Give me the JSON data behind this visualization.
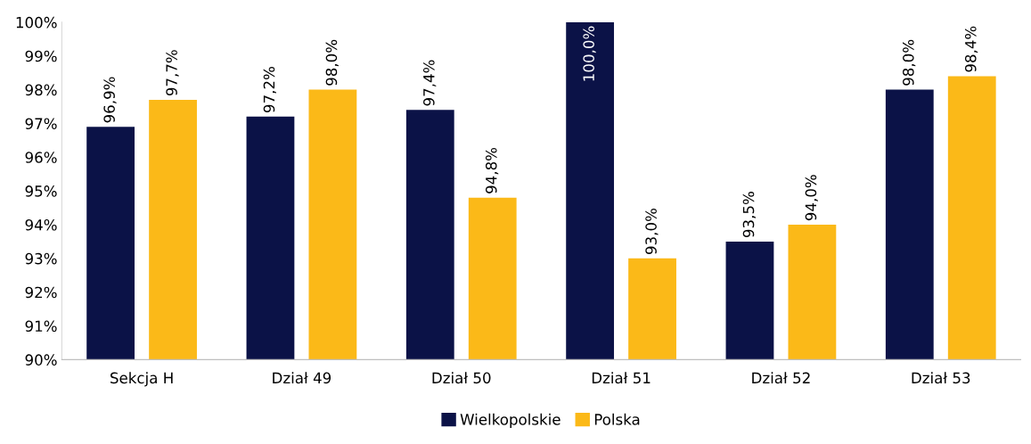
{
  "chart_data": {
    "type": "bar",
    "categories": [
      "Sekcja H",
      "Dział 49",
      "Dział 50",
      "Dział 51",
      "Dział 52",
      "Dział 53"
    ],
    "series": [
      {
        "name": "Wielkopolskie",
        "color": "#0b1247",
        "values": [
          96.9,
          97.2,
          97.4,
          100.0,
          93.5,
          98.0
        ],
        "value_labels": [
          "96,9%",
          "97,2%",
          "97,4%",
          "100,0%",
          "93,5%",
          "98,0%"
        ]
      },
      {
        "name": "Polska",
        "color": "#fbb918",
        "values": [
          97.7,
          98.0,
          94.8,
          93.0,
          94.0,
          98.4
        ],
        "value_labels": [
          "97,7%",
          "98,0%",
          "94,8%",
          "93,0%",
          "94,0%",
          "98,4%"
        ]
      }
    ],
    "ylim": [
      90,
      100
    ],
    "yticks": [
      {
        "value": 90,
        "label": "90%"
      },
      {
        "value": 91,
        "label": "91%"
      },
      {
        "value": 92,
        "label": "92%"
      },
      {
        "value": 93,
        "label": "93%"
      },
      {
        "value": 94,
        "label": "94%"
      },
      {
        "value": 95,
        "label": "95%"
      },
      {
        "value": 96,
        "label": "96%"
      },
      {
        "value": 97,
        "label": "97%"
      },
      {
        "value": 98,
        "label": "98%"
      },
      {
        "value": 99,
        "label": "99%"
      },
      {
        "value": 100,
        "label": "100%"
      }
    ],
    "grid": false,
    "legend": "bottom"
  }
}
